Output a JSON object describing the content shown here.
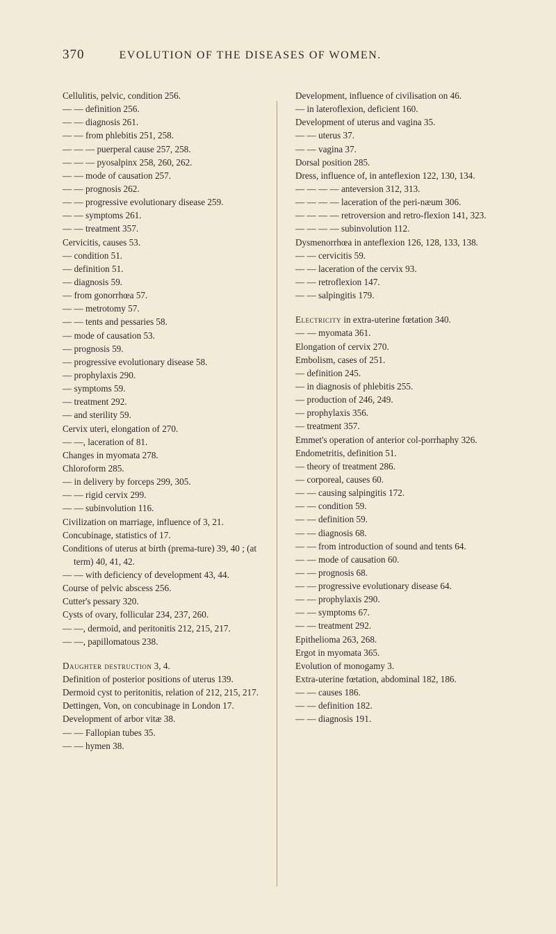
{
  "page_number": "370",
  "header_title": "EVOLUTION OF THE DISEASES OF WOMEN.",
  "left_column": [
    {
      "text": "Cellulitis, pelvic, condition 256.",
      "class": "entry"
    },
    {
      "text": "— — definition 256.",
      "class": "entry"
    },
    {
      "text": "— — diagnosis 261.",
      "class": "entry"
    },
    {
      "text": "— — from phlebitis 251, 258.",
      "class": "entry"
    },
    {
      "text": "— — — puerperal cause 257, 258.",
      "class": "entry"
    },
    {
      "text": "— — — pyosalpinx 258, 260, 262.",
      "class": "entry"
    },
    {
      "text": "— — mode of causation 257.",
      "class": "entry"
    },
    {
      "text": "— — prognosis 262.",
      "class": "entry"
    },
    {
      "text": "— — progressive evolutionary disease 259.",
      "class": "entry"
    },
    {
      "text": "— — symptoms 261.",
      "class": "entry"
    },
    {
      "text": "— — treatment 357.",
      "class": "entry"
    },
    {
      "text": "Cervicitis, causes 53.",
      "class": "entry"
    },
    {
      "text": "— condition 51.",
      "class": "entry"
    },
    {
      "text": "— definition 51.",
      "class": "entry"
    },
    {
      "text": "— diagnosis 59.",
      "class": "entry"
    },
    {
      "text": "— from gonorrhœa 57.",
      "class": "entry"
    },
    {
      "text": "— — metrotomy 57.",
      "class": "entry"
    },
    {
      "text": "— — tents and pessaries 58.",
      "class": "entry"
    },
    {
      "text": "— mode of causation 53.",
      "class": "entry"
    },
    {
      "text": "— prognosis 59.",
      "class": "entry"
    },
    {
      "text": "— progressive evolutionary disease 58.",
      "class": "entry"
    },
    {
      "text": "— prophylaxis 290.",
      "class": "entry"
    },
    {
      "text": "— symptoms 59.",
      "class": "entry"
    },
    {
      "text": "— treatment 292.",
      "class": "entry"
    },
    {
      "text": "— and sterility 59.",
      "class": "entry"
    },
    {
      "text": "Cervix uteri, elongation of 270.",
      "class": "entry"
    },
    {
      "text": "— —, laceration of 81.",
      "class": "entry"
    },
    {
      "text": "Changes in myomata 278.",
      "class": "entry"
    },
    {
      "text": "Chloroform 285.",
      "class": "entry"
    },
    {
      "text": "— in delivery by forceps 299, 305.",
      "class": "entry"
    },
    {
      "text": "— — rigid cervix 299.",
      "class": "entry"
    },
    {
      "text": "— — subinvolution 116.",
      "class": "entry"
    },
    {
      "text": "Civilization on marriage, influence of 3, 21.",
      "class": "entry"
    },
    {
      "text": "Concubinage, statistics of 17.",
      "class": "entry"
    },
    {
      "text": "Conditions of uterus at birth (prema-ture) 39, 40 ; (at term) 40, 41, 42.",
      "class": "entry"
    },
    {
      "text": "— — with deficiency of development 43, 44.",
      "class": "entry"
    },
    {
      "text": "Course of pelvic abscess 256.",
      "class": "entry"
    },
    {
      "text": "Cutter's pessary 320.",
      "class": "entry"
    },
    {
      "text": "Cysts of ovary, follicular 234, 237, 260.",
      "class": "entry"
    },
    {
      "text": "— —, dermoid, and peritonitis 212, 215, 217.",
      "class": "entry"
    },
    {
      "text": "— —, papillomatous 238.",
      "class": "entry"
    },
    {
      "text": "Daughter destruction 3, 4.",
      "class": "entry section-start",
      "smallcaps_word": "Daughter destruction"
    },
    {
      "text": "Definition of posterior positions of uterus 139.",
      "class": "entry"
    },
    {
      "text": "Dermoid cyst to peritonitis, relation of 212, 215, 217.",
      "class": "entry"
    },
    {
      "text": "Dettingen, Von, on concubinage in London 17.",
      "class": "entry"
    },
    {
      "text": "Development of arbor vitæ 38.",
      "class": "entry"
    },
    {
      "text": "— — Fallopian tubes 35.",
      "class": "entry"
    },
    {
      "text": "— — hymen 38.",
      "class": "entry"
    }
  ],
  "right_column": [
    {
      "text": "Development, influence of civilisation on 46.",
      "class": "entry"
    },
    {
      "text": "— in lateroflexion, deficient 160.",
      "class": "entry"
    },
    {
      "text": "Development of uterus and vagina 35.",
      "class": "entry"
    },
    {
      "text": "— — uterus 37.",
      "class": "entry"
    },
    {
      "text": "— — vagina 37.",
      "class": "entry"
    },
    {
      "text": "Dorsal position 285.",
      "class": "entry"
    },
    {
      "text": "Dress, influence of, in anteflexion 122, 130, 134.",
      "class": "entry"
    },
    {
      "text": "— — — — anteversion 312, 313.",
      "class": "entry"
    },
    {
      "text": "— — — — laceration of the peri-næum 306.",
      "class": "entry"
    },
    {
      "text": "— — — — retroversion and retro-flexion 141, 323.",
      "class": "entry"
    },
    {
      "text": "— — — — subinvolution 112.",
      "class": "entry"
    },
    {
      "text": "Dysmenorrhœa in anteflexion 126, 128, 133, 138.",
      "class": "entry"
    },
    {
      "text": "— — cervicitis 59.",
      "class": "entry"
    },
    {
      "text": "— — laceration of the cervix 93.",
      "class": "entry"
    },
    {
      "text": "— — retroflexion 147.",
      "class": "entry"
    },
    {
      "text": "— — salpingitis 179.",
      "class": "entry"
    },
    {
      "text": "Electricity in extra-uterine fœtation 340.",
      "class": "entry section-start",
      "smallcaps_word": "Electricity"
    },
    {
      "text": "— — myomata 361.",
      "class": "entry"
    },
    {
      "text": "Elongation of cervix 270.",
      "class": "entry"
    },
    {
      "text": "Embolism, cases of 251.",
      "class": "entry"
    },
    {
      "text": "— definition 245.",
      "class": "entry"
    },
    {
      "text": "— in diagnosis of phlebitis 255.",
      "class": "entry"
    },
    {
      "text": "— production of 246, 249.",
      "class": "entry"
    },
    {
      "text": "— prophylaxis 356.",
      "class": "entry"
    },
    {
      "text": "— treatment 357.",
      "class": "entry"
    },
    {
      "text": "Emmet's operation of anterior col-porrhaphy 326.",
      "class": "entry"
    },
    {
      "text": "Endometritis, definition 51.",
      "class": "entry"
    },
    {
      "text": "— theory of treatment 286.",
      "class": "entry"
    },
    {
      "text": "— corporeal, causes 60.",
      "class": "entry"
    },
    {
      "text": "— — causing salpingitis 172.",
      "class": "entry"
    },
    {
      "text": "— — condition 59.",
      "class": "entry"
    },
    {
      "text": "— — definition 59.",
      "class": "entry"
    },
    {
      "text": "— — diagnosis 68.",
      "class": "entry"
    },
    {
      "text": "— — from introduction of sound and tents 64.",
      "class": "entry"
    },
    {
      "text": "— — mode of causation 60.",
      "class": "entry"
    },
    {
      "text": "— — prognosis 68.",
      "class": "entry"
    },
    {
      "text": "— — progressive evolutionary disease 64.",
      "class": "entry"
    },
    {
      "text": "— — prophylaxis 290.",
      "class": "entry"
    },
    {
      "text": "— — symptoms 67.",
      "class": "entry"
    },
    {
      "text": "— — treatment 292.",
      "class": "entry"
    },
    {
      "text": "Epithelioma 263, 268.",
      "class": "entry"
    },
    {
      "text": "Ergot in myomata 365.",
      "class": "entry"
    },
    {
      "text": "Evolution of monogamy 3.",
      "class": "entry"
    },
    {
      "text": "Extra-uterine fœtation, abdominal 182, 186.",
      "class": "entry"
    },
    {
      "text": "— — causes 186.",
      "class": "entry"
    },
    {
      "text": "— — definition 182.",
      "class": "entry"
    },
    {
      "text": "— — diagnosis 191.",
      "class": "entry"
    }
  ]
}
